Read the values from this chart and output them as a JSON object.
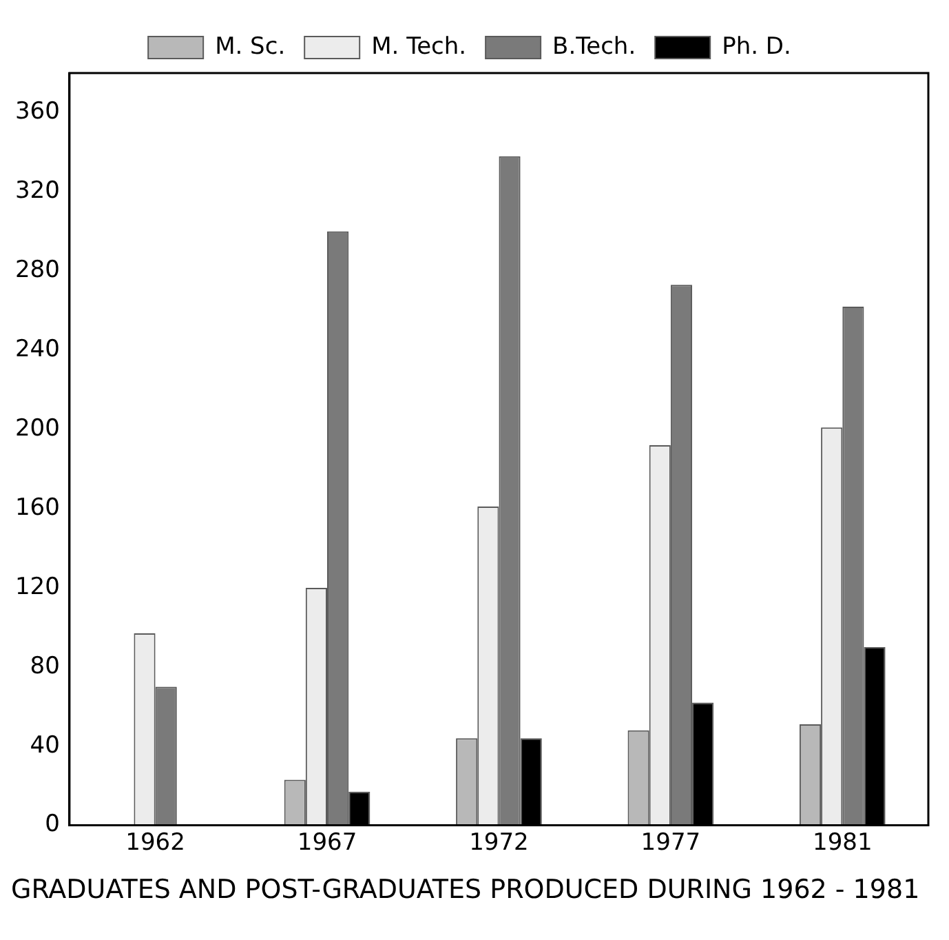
{
  "chart_data": {
    "type": "bar",
    "title": "GRADUATES AND POST-GRADUATES PRODUCED DURING 1962 - 1981",
    "categories": [
      "1962",
      "1967",
      "1972",
      "1977",
      "1981"
    ],
    "series": [
      {
        "name": "M. Sc.",
        "color": "#b8b8b8",
        "values": [
          null,
          23,
          44,
          48,
          51
        ]
      },
      {
        "name": "M. Tech.",
        "color": "#ececec",
        "values": [
          97,
          120,
          161,
          192,
          201
        ]
      },
      {
        "name": "B.Tech.",
        "color": "#7a7a7a",
        "values": [
          70,
          300,
          338,
          273,
          262
        ]
      },
      {
        "name": "Ph. D.",
        "color": "#000000",
        "values": [
          null,
          17,
          44,
          62,
          90
        ]
      }
    ],
    "ylim": [
      0,
      380
    ],
    "yticks": [
      0,
      40,
      80,
      120,
      160,
      200,
      240,
      280,
      320,
      360
    ],
    "grid": false,
    "legend": "top"
  }
}
